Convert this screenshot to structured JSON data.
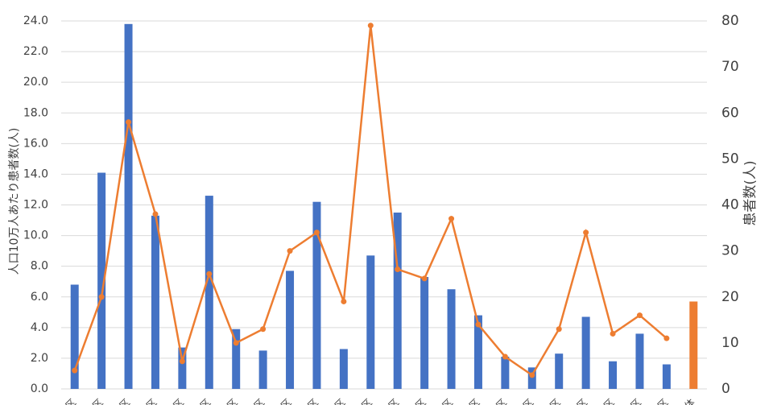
{
  "chart_data": {
    "type": "bar-line",
    "y_label": "人口10万人あたり患者数(人)",
    "y2_label": "患者数(人)",
    "categories": [
      "区",
      "区",
      "区",
      "区",
      "区",
      "区",
      "区",
      "区",
      "区",
      "区",
      "区",
      "区",
      "区",
      "区",
      "区",
      "区",
      "区",
      "区",
      "区",
      "区",
      "区",
      "区",
      "区",
      "体"
    ],
    "series": [
      {
        "type": "bar",
        "color": "#4472c4",
        "colors": [
          "#4472c4",
          "#4472c4",
          "#4472c4",
          "#4472c4",
          "#4472c4",
          "#4472c4",
          "#4472c4",
          "#4472c4",
          "#4472c4",
          "#4472c4",
          "#4472c4",
          "#4472c4",
          "#4472c4",
          "#4472c4",
          "#4472c4",
          "#4472c4",
          "#4472c4",
          "#4472c4",
          "#4472c4",
          "#4472c4",
          "#4472c4",
          "#4472c4",
          "#4472c4",
          "#ed7d31"
        ],
        "values": [
          6.8,
          14.1,
          23.8,
          11.3,
          2.7,
          12.6,
          3.9,
          2.5,
          7.7,
          12.2,
          2.6,
          8.7,
          11.5,
          7.3,
          6.5,
          4.8,
          2.1,
          1.4,
          2.3,
          4.7,
          1.8,
          3.6,
          1.6,
          5.7
        ]
      },
      {
        "type": "line",
        "axis": "y2",
        "color": "#ed7d31",
        "values": [
          4,
          20,
          58,
          38,
          6,
          25,
          10,
          13,
          30,
          34,
          19,
          79,
          26,
          24,
          37,
          14,
          7,
          3,
          13,
          34,
          12,
          16,
          11,
          null
        ]
      }
    ],
    "ylim": [
      0,
      24
    ],
    "yticks": [
      {
        "value": 0,
        "label": "0.0"
      },
      {
        "value": 2,
        "label": "2.0"
      },
      {
        "value": 4,
        "label": "4.0"
      },
      {
        "value": 6,
        "label": "6.0"
      },
      {
        "value": 8,
        "label": "8.0"
      },
      {
        "value": 10,
        "label": "10.0"
      },
      {
        "value": 12,
        "label": "12.0"
      },
      {
        "value": 14,
        "label": "14.0"
      },
      {
        "value": 16,
        "label": "16.0"
      },
      {
        "value": 18,
        "label": "18.0"
      },
      {
        "value": 20,
        "label": "20.0"
      },
      {
        "value": 22,
        "label": "22.0"
      },
      {
        "value": 24,
        "label": "24.0"
      }
    ],
    "y2lim": [
      0,
      80
    ],
    "y2ticks": [
      0,
      10,
      20,
      30,
      40,
      50,
      60,
      70,
      80
    ],
    "grid": true
  }
}
